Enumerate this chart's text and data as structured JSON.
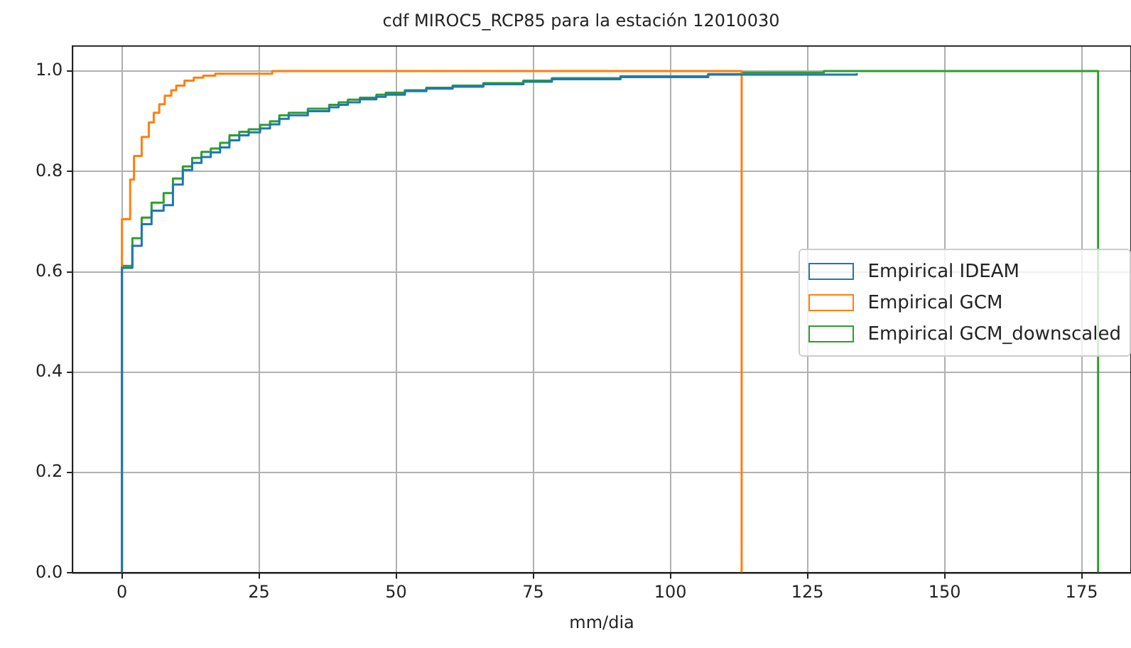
{
  "chart_data": {
    "type": "step",
    "title": "cdf MIROC5_RCP85 para la estación 12010030",
    "xlabel": "mm/dia",
    "xlim": [
      -9,
      184
    ],
    "xticks": [
      0,
      25,
      50,
      75,
      100,
      125,
      150,
      175
    ],
    "ylim": [
      0,
      1.05
    ],
    "yticks": [
      {
        "value": 0,
        "label": "0.0"
      },
      {
        "value": 0.2,
        "label": "0.2"
      },
      {
        "value": 0.4,
        "label": "0.4"
      },
      {
        "value": 0.6,
        "label": "0.6"
      },
      {
        "value": 0.8,
        "label": "0.8"
      },
      {
        "value": 1,
        "label": "1.0"
      }
    ],
    "grid": true,
    "legend": "right",
    "marker": "none",
    "line_style": "solid",
    "series": [
      {
        "name": "Empirical IDEAM",
        "color": "#1f77b4",
        "x": [
          0,
          0,
          1.9,
          3.6,
          5.4,
          7.6,
          9.3,
          11.1,
          12.8,
          14.5,
          16.2,
          17.9,
          19.6,
          21.4,
          23.1,
          25.2,
          27,
          28.7,
          30.4,
          33.9,
          37.8,
          39.5,
          41.2,
          43.4,
          46.4,
          48.1,
          51.6,
          55.5,
          60.3,
          65.9,
          73.2,
          78.4,
          90.9,
          106.9,
          134
        ],
        "values": [
          0,
          0.608,
          0.652,
          0.695,
          0.722,
          0.733,
          0.774,
          0.803,
          0.817,
          0.829,
          0.838,
          0.848,
          0.862,
          0.872,
          0.878,
          0.886,
          0.894,
          0.905,
          0.912,
          0.92,
          0.928,
          0.933,
          0.938,
          0.944,
          0.949,
          0.953,
          0.96,
          0.965,
          0.969,
          0.974,
          0.979,
          0.984,
          0.988,
          0.993,
          0.996
        ]
      },
      {
        "name": "Empirical GCM",
        "color": "#ff7f0e",
        "x": [
          0,
          0,
          1.5,
          2.2,
          3.6,
          4.9,
          5.8,
          6.8,
          7.8,
          9,
          9.9,
          11.4,
          13.1,
          14.8,
          17,
          27.4,
          113
        ],
        "values": [
          0,
          0.705,
          0.784,
          0.831,
          0.869,
          0.898,
          0.917,
          0.934,
          0.951,
          0.962,
          0.971,
          0.981,
          0.987,
          0.991,
          0.995,
          1,
          0
        ]
      },
      {
        "name": "Empirical GCM_downscaled",
        "color": "#2ca02c",
        "x": [
          0,
          0,
          1.9,
          3.6,
          5.4,
          7.6,
          9.3,
          11.1,
          12.8,
          14.5,
          16.2,
          17.9,
          19.6,
          21.4,
          23.1,
          25.2,
          27,
          28.7,
          30.4,
          33.9,
          37.8,
          39.5,
          41.2,
          43.4,
          46.4,
          48.1,
          51.6,
          55.5,
          60.3,
          65.9,
          73.2,
          78.4,
          90.9,
          106.9,
          113,
          128,
          178
        ],
        "values": [
          0,
          0.612,
          0.667,
          0.708,
          0.738,
          0.757,
          0.786,
          0.81,
          0.827,
          0.839,
          0.846,
          0.857,
          0.872,
          0.879,
          0.884,
          0.893,
          0.9,
          0.912,
          0.917,
          0.925,
          0.933,
          0.938,
          0.943,
          0.947,
          0.953,
          0.957,
          0.962,
          0.967,
          0.971,
          0.976,
          0.981,
          0.986,
          0.99,
          0.994,
          0.997,
          1,
          0
        ]
      }
    ]
  }
}
